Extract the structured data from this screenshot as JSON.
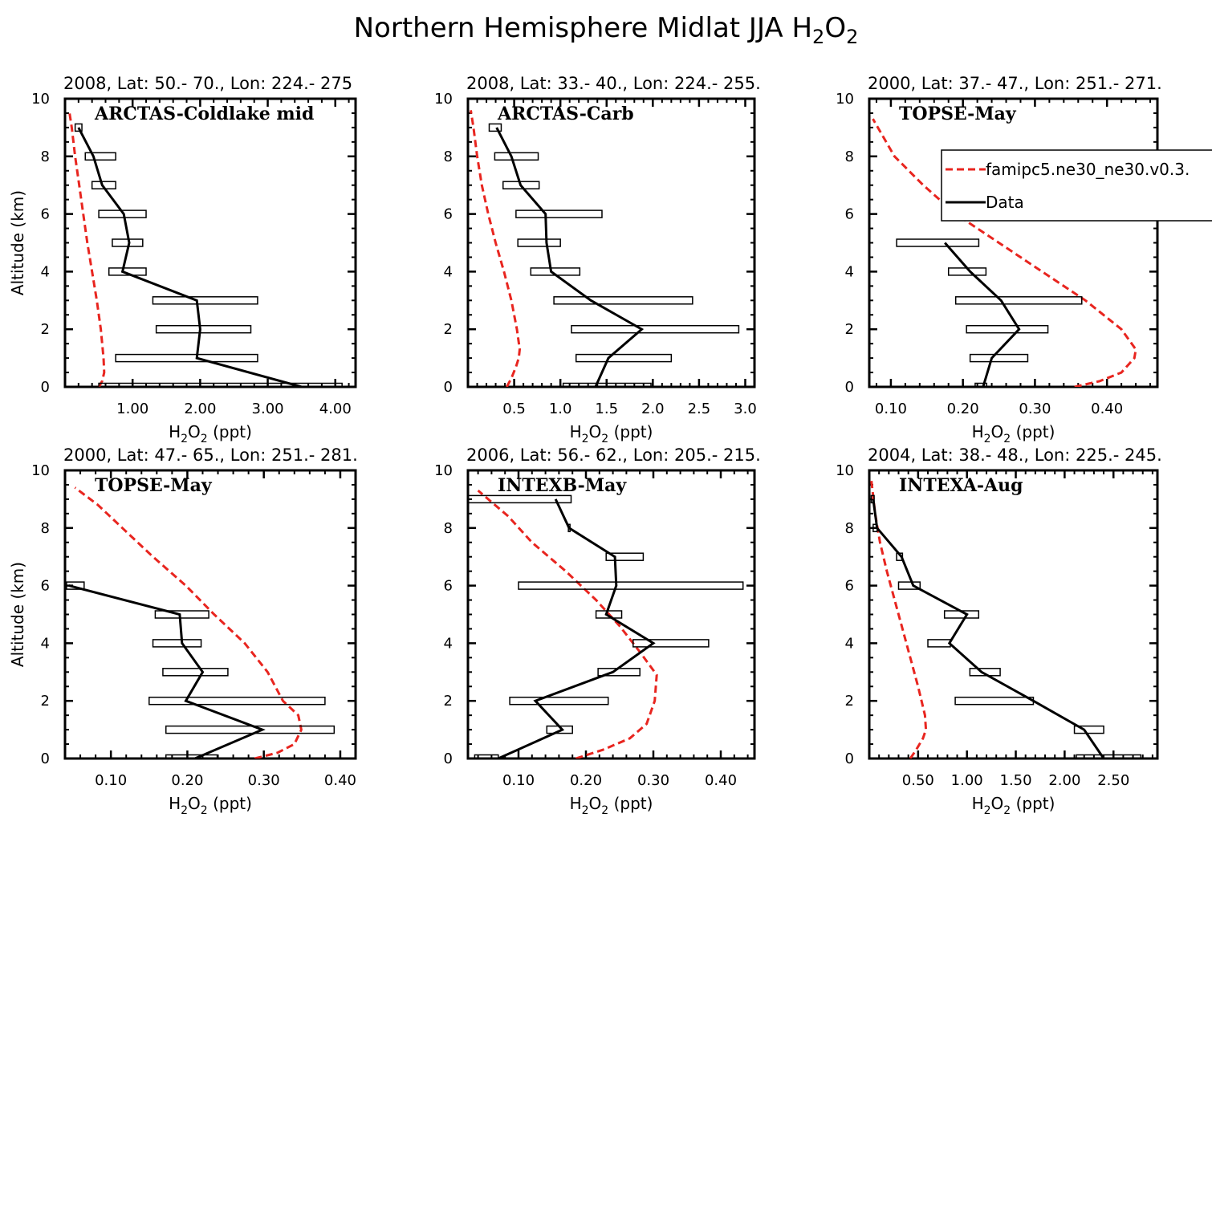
{
  "figure": {
    "title_main": "Northern Hemisphere Midlat JJA H",
    "title_sub1": "2",
    "title_mid": "O",
    "title_sub2": "2"
  },
  "legend": {
    "model_label": "famipc5.ne30_ne30.v0.3.",
    "data_label": "Data",
    "model_color": "#e8251f",
    "data_color": "#000000"
  },
  "axis_text": {
    "xlabel_main": "H",
    "xlabel_sub1": "2",
    "xlabel_mid": "O",
    "xlabel_sub2": "2",
    "xlabel_unit": " (ppt)",
    "ylabel": "Altitude (km)"
  },
  "chart_data": [
    {
      "type": "line",
      "header": "2008, Lat:  50.- 70., Lon: 224.- 275",
      "campaign": "ARCTAS-Coldlake mid",
      "xlim": [
        0,
        4.3
      ],
      "ylim": [
        0,
        10
      ],
      "xticks": [
        1,
        2,
        3,
        4
      ],
      "xticklabels": [
        "1.00",
        "2.00",
        "3.00",
        "4.00"
      ],
      "yticks": [
        0,
        2,
        4,
        6,
        8,
        10
      ],
      "yticklabels": [
        "0",
        "2",
        "4",
        "6",
        "8",
        "10"
      ],
      "ylabel_shown": true,
      "legend_shown": false,
      "data_series": {
        "name": "Data",
        "points": [
          [
            3.5,
            0
          ],
          [
            1.95,
            1
          ],
          [
            2.0,
            2
          ],
          [
            1.95,
            3
          ],
          [
            0.85,
            4
          ],
          [
            0.95,
            5
          ],
          [
            0.87,
            6
          ],
          [
            0.55,
            7
          ],
          [
            0.42,
            8
          ],
          [
            0.2,
            9
          ]
        ]
      },
      "boxes": [
        [
          0.5,
          4.1,
          0
        ],
        [
          0.75,
          2.85,
          1
        ],
        [
          1.35,
          2.75,
          2
        ],
        [
          1.3,
          2.85,
          3
        ],
        [
          0.65,
          1.2,
          4
        ],
        [
          0.7,
          1.15,
          5
        ],
        [
          0.5,
          1.2,
          6
        ],
        [
          0.4,
          0.75,
          7
        ],
        [
          0.3,
          0.75,
          8
        ],
        [
          0.15,
          0.25,
          9
        ]
      ],
      "model_series": {
        "name": "famipc5.ne30_ne30.v0.3.",
        "points": [
          [
            0.5,
            0
          ],
          [
            0.55,
            0.2
          ],
          [
            0.58,
            0.5
          ],
          [
            0.57,
            1
          ],
          [
            0.53,
            2
          ],
          [
            0.47,
            3
          ],
          [
            0.4,
            4
          ],
          [
            0.33,
            5
          ],
          [
            0.27,
            6
          ],
          [
            0.21,
            7
          ],
          [
            0.15,
            8
          ],
          [
            0.1,
            9
          ],
          [
            0.06,
            9.6
          ]
        ]
      }
    },
    {
      "type": "line",
      "header": "2008, Lat:  33.- 40., Lon: 224.- 255.",
      "campaign": "ARCTAS-Carb",
      "xlim": [
        0,
        3.1
      ],
      "ylim": [
        0,
        10
      ],
      "xticks": [
        0.5,
        1.0,
        1.5,
        2.0,
        2.5,
        3.0
      ],
      "xticklabels": [
        "0.5",
        "1.0",
        "1.5",
        "2.0",
        "2.5",
        "3.0"
      ],
      "yticks": [
        0,
        2,
        4,
        6,
        8,
        10
      ],
      "yticklabels": [
        "0",
        "2",
        "4",
        "6",
        "8",
        "10"
      ],
      "ylabel_shown": false,
      "legend_shown": false,
      "data_series": {
        "name": "Data",
        "points": [
          [
            1.38,
            0
          ],
          [
            1.52,
            1
          ],
          [
            1.88,
            2
          ],
          [
            1.33,
            3
          ],
          [
            0.9,
            4
          ],
          [
            0.85,
            5
          ],
          [
            0.84,
            6
          ],
          [
            0.57,
            7
          ],
          [
            0.47,
            8
          ],
          [
            0.31,
            9
          ]
        ]
      },
      "boxes": [
        [
          1.03,
          1.98,
          0
        ],
        [
          1.17,
          2.2,
          1
        ],
        [
          1.12,
          2.93,
          2
        ],
        [
          0.93,
          2.43,
          3
        ],
        [
          0.68,
          1.21,
          4
        ],
        [
          0.54,
          1.0,
          5
        ],
        [
          0.52,
          1.45,
          6
        ],
        [
          0.38,
          0.77,
          7
        ],
        [
          0.29,
          0.76,
          8
        ],
        [
          0.23,
          0.36,
          9
        ]
      ],
      "model_series": {
        "name": "famipc5.ne30_ne30.v0.3.",
        "points": [
          [
            0.42,
            0
          ],
          [
            0.47,
            0.3
          ],
          [
            0.52,
            0.7
          ],
          [
            0.55,
            1
          ],
          [
            0.56,
            1.3
          ],
          [
            0.53,
            2
          ],
          [
            0.47,
            3
          ],
          [
            0.39,
            4
          ],
          [
            0.3,
            5
          ],
          [
            0.22,
            6
          ],
          [
            0.15,
            7
          ],
          [
            0.1,
            8
          ],
          [
            0.06,
            9
          ],
          [
            0.03,
            9.6
          ]
        ]
      }
    },
    {
      "type": "line",
      "header": "2000, Lat: 37.- 47., Lon: 251.- 271.",
      "campaign": "TOPSE-May",
      "xlim": [
        0.07,
        0.47
      ],
      "ylim": [
        0,
        10
      ],
      "xticks": [
        0.1,
        0.2,
        0.3,
        0.4
      ],
      "xticklabels": [
        "0.10",
        "0.20",
        "0.30",
        "0.40"
      ],
      "yticks": [
        0,
        2,
        4,
        6,
        8,
        10
      ],
      "yticklabels": [
        "0",
        "2",
        "4",
        "6",
        "8",
        "10"
      ],
      "ylabel_shown": false,
      "legend_shown": true,
      "data_series": {
        "name": "Data",
        "points": [
          [
            0.228,
            0
          ],
          [
            0.24,
            1
          ],
          [
            0.278,
            2
          ],
          [
            0.253,
            3
          ],
          [
            0.21,
            4
          ],
          [
            0.175,
            5
          ]
        ]
      },
      "boxes": [
        [
          0.217,
          0.233,
          0
        ],
        [
          0.21,
          0.29,
          1
        ],
        [
          0.205,
          0.318,
          2
        ],
        [
          0.19,
          0.365,
          3
        ],
        [
          0.18,
          0.232,
          4
        ],
        [
          0.108,
          0.222,
          5
        ]
      ],
      "model_series": {
        "name": "famipc5.ne30_ne30.v0.3.",
        "points": [
          [
            0.355,
            0
          ],
          [
            0.39,
            0.2
          ],
          [
            0.42,
            0.5
          ],
          [
            0.438,
            1
          ],
          [
            0.44,
            1.3
          ],
          [
            0.42,
            2
          ],
          [
            0.37,
            3
          ],
          [
            0.31,
            4
          ],
          [
            0.25,
            5
          ],
          [
            0.19,
            6
          ],
          [
            0.145,
            7
          ],
          [
            0.105,
            8
          ],
          [
            0.075,
            9.3
          ]
        ]
      }
    },
    {
      "type": "line",
      "header": "2000, Lat: 47.- 65., Lon: 251.- 281.",
      "campaign": "TOPSE-May",
      "xlim": [
        0.04,
        0.42
      ],
      "ylim": [
        0,
        10
      ],
      "xticks": [
        0.1,
        0.2,
        0.3,
        0.4
      ],
      "xticklabels": [
        "0.10",
        "0.20",
        "0.30",
        "0.40"
      ],
      "yticks": [
        0,
        2,
        4,
        6,
        8,
        10
      ],
      "yticklabels": [
        "0",
        "2",
        "4",
        "6",
        "8",
        "10"
      ],
      "ylabel_shown": true,
      "legend_shown": false,
      "data_series": {
        "name": "Data",
        "points": [
          [
            0.21,
            0
          ],
          [
            0.298,
            1
          ],
          [
            0.198,
            2
          ],
          [
            0.22,
            3
          ],
          [
            0.193,
            4
          ],
          [
            0.19,
            5
          ],
          [
            0.045,
            6
          ]
        ]
      },
      "boxes": [
        [
          0.172,
          0.239,
          0
        ],
        [
          0.172,
          0.392,
          1
        ],
        [
          0.15,
          0.38,
          2
        ],
        [
          0.168,
          0.253,
          3
        ],
        [
          0.155,
          0.218,
          4
        ],
        [
          0.158,
          0.228,
          5
        ],
        [
          0.042,
          0.065,
          6
        ]
      ],
      "model_series": {
        "name": "famipc5.ne30_ne30.v0.3.",
        "points": [
          [
            0.288,
            0
          ],
          [
            0.318,
            0.2
          ],
          [
            0.34,
            0.5
          ],
          [
            0.349,
            1
          ],
          [
            0.345,
            1.5
          ],
          [
            0.325,
            2
          ],
          [
            0.305,
            3
          ],
          [
            0.275,
            4
          ],
          [
            0.235,
            5
          ],
          [
            0.198,
            6
          ],
          [
            0.155,
            7
          ],
          [
            0.115,
            8
          ],
          [
            0.083,
            8.8
          ],
          [
            0.053,
            9.4
          ]
        ]
      }
    },
    {
      "type": "line",
      "header": "2006, Lat: 56.- 62., Lon: 205.- 215.",
      "campaign": "INTEXB-May",
      "xlim": [
        0.025,
        0.45
      ],
      "ylim": [
        0,
        10
      ],
      "xticks": [
        0.1,
        0.2,
        0.3,
        0.4
      ],
      "xticklabels": [
        "0.10",
        "0.20",
        "0.30",
        "0.40"
      ],
      "yticks": [
        0,
        2,
        4,
        6,
        8,
        10
      ],
      "yticklabels": [
        "0",
        "2",
        "4",
        "6",
        "8",
        "10"
      ],
      "ylabel_shown": false,
      "legend_shown": false,
      "data_series": {
        "name": "Data",
        "points": [
          [
            0.07,
            0
          ],
          [
            0.165,
            1
          ],
          [
            0.125,
            2
          ],
          [
            0.24,
            3
          ],
          [
            0.3,
            4
          ],
          [
            0.23,
            5
          ],
          [
            0.245,
            6
          ],
          [
            0.243,
            7
          ],
          [
            0.175,
            8
          ],
          [
            0.155,
            9
          ]
        ]
      },
      "boxes": [
        [
          0.035,
          0.07,
          0
        ],
        [
          0.142,
          0.18,
          1
        ],
        [
          0.087,
          0.233,
          2
        ],
        [
          0.218,
          0.28,
          3
        ],
        [
          0.27,
          0.382,
          4
        ],
        [
          0.215,
          0.253,
          5
        ],
        [
          0.1,
          0.433,
          6
        ],
        [
          0.23,
          0.285,
          7
        ],
        [
          0.174,
          0.176,
          8
        ],
        [
          0.025,
          0.178,
          9
        ]
      ],
      "model_series": {
        "name": "famipc5.ne30_ne30.v0.3.",
        "points": [
          [
            0.185,
            0
          ],
          [
            0.225,
            0.3
          ],
          [
            0.265,
            0.7
          ],
          [
            0.29,
            1.2
          ],
          [
            0.302,
            2
          ],
          [
            0.305,
            2.9
          ],
          [
            0.28,
            3.7
          ],
          [
            0.25,
            4.6
          ],
          [
            0.215,
            5.5
          ],
          [
            0.17,
            6.5
          ],
          [
            0.12,
            7.5
          ],
          [
            0.085,
            8.4
          ],
          [
            0.04,
            9.3
          ]
        ]
      }
    },
    {
      "type": "line",
      "header": "2004, Lat: 38.- 48., Lon: 225.- 245.",
      "campaign": "INTEXA-Aug",
      "xlim": [
        0,
        2.95
      ],
      "ylim": [
        0,
        10
      ],
      "xticks": [
        0.5,
        1.0,
        1.5,
        2.0,
        2.5
      ],
      "xticklabels": [
        "0.50",
        "1.00",
        "1.50",
        "2.00",
        "2.50"
      ],
      "yticks": [
        0,
        2,
        4,
        6,
        8,
        10
      ],
      "yticklabels": [
        "0",
        "2",
        "4",
        "6",
        "8",
        "10"
      ],
      "ylabel_shown": false,
      "legend_shown": false,
      "data_series": {
        "name": "Data",
        "points": [
          [
            2.4,
            0
          ],
          [
            2.2,
            1
          ],
          [
            1.68,
            2
          ],
          [
            1.15,
            3
          ],
          [
            0.82,
            4
          ],
          [
            1.0,
            5
          ],
          [
            0.45,
            6
          ],
          [
            0.33,
            7
          ],
          [
            0.08,
            8
          ],
          [
            0.04,
            9
          ]
        ]
      },
      "boxes": [
        [
          2.12,
          2.78,
          0
        ],
        [
          2.1,
          2.4,
          1
        ],
        [
          0.88,
          1.68,
          2
        ],
        [
          1.03,
          1.34,
          3
        ],
        [
          0.6,
          0.83,
          4
        ],
        [
          0.77,
          1.12,
          5
        ],
        [
          0.3,
          0.52,
          6
        ],
        [
          0.28,
          0.34,
          7
        ],
        [
          0.04,
          0.08,
          8
        ],
        [
          0.02,
          0.05,
          9
        ]
      ],
      "model_series": {
        "name": "famipc5.ne30_ne30.v0.3.",
        "points": [
          [
            0.42,
            0
          ],
          [
            0.48,
            0.3
          ],
          [
            0.55,
            0.7
          ],
          [
            0.58,
            1
          ],
          [
            0.57,
            1.5
          ],
          [
            0.5,
            2.5
          ],
          [
            0.42,
            3.5
          ],
          [
            0.34,
            4.5
          ],
          [
            0.26,
            5.5
          ],
          [
            0.18,
            6.5
          ],
          [
            0.11,
            7.5
          ],
          [
            0.06,
            8.5
          ],
          [
            0.02,
            9.7
          ]
        ]
      }
    }
  ]
}
